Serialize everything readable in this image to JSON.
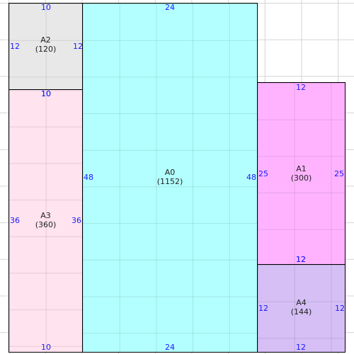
{
  "colors": {
    "A0": "#b3ffff",
    "A1": "#ffb3ff",
    "A2": "#e8e8e8",
    "A3": "#ffe3ee",
    "A4": "#d5bff5",
    "dimension_text": "#1a1aff",
    "border": "#000000",
    "grid": "#d4d4d4"
  },
  "rooms": [
    {
      "id": "A0",
      "name": "A0",
      "area": "(1152)",
      "dims": {
        "top": "24",
        "bottom": "24",
        "left": "48",
        "right": "48"
      }
    },
    {
      "id": "A1",
      "name": "A1",
      "area": "(300)",
      "dims": {
        "top": "12",
        "bottom": "12",
        "left": "25",
        "right": "25"
      }
    },
    {
      "id": "A2",
      "name": "A2",
      "area": "(120)",
      "dims": {
        "top": "10",
        "bottom": "10",
        "left": "12",
        "right": "12"
      }
    },
    {
      "id": "A3",
      "name": "A3",
      "area": "(360)",
      "dims": {
        "top": "10",
        "bottom": "10",
        "left": "36",
        "right": "36"
      }
    },
    {
      "id": "A4",
      "name": "A4",
      "area": "(144)",
      "dims": {
        "top": "12",
        "bottom": "12",
        "left": "12",
        "right": "12"
      }
    }
  ]
}
